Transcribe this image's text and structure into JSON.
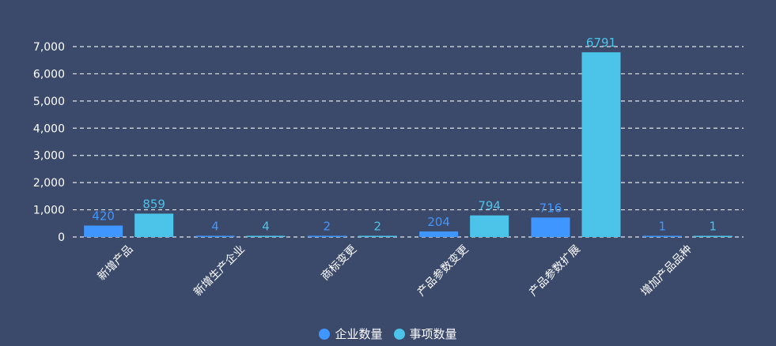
{
  "chart_data": {
    "type": "bar",
    "categories": [
      "新增产品",
      "新增生产企业",
      "商标变更",
      "产品参数变更",
      "产品参数扩展",
      "增加产品品种"
    ],
    "series": [
      {
        "name": "企业数量",
        "values": [
          420,
          4,
          2,
          204,
          716,
          1
        ],
        "color": "#4096ff"
      },
      {
        "name": "事项数量",
        "values": [
          859,
          4,
          2,
          794,
          6791,
          1
        ],
        "color": "#4cc3e8"
      }
    ],
    "ylim": [
      0,
      7000
    ],
    "yticks": [
      0,
      1000,
      2000,
      3000,
      4000,
      5000,
      6000,
      7000
    ],
    "ytick_labels": [
      "0",
      "1,000",
      "2,000",
      "3,000",
      "4,000",
      "5,000",
      "6,000",
      "7,000"
    ],
    "grid": true,
    "legend_position": "bottom-center",
    "data_labels": true
  },
  "colors": {
    "background": "#3b4a6b",
    "axis_text": "#ffffff",
    "grid": "#ffffff"
  }
}
